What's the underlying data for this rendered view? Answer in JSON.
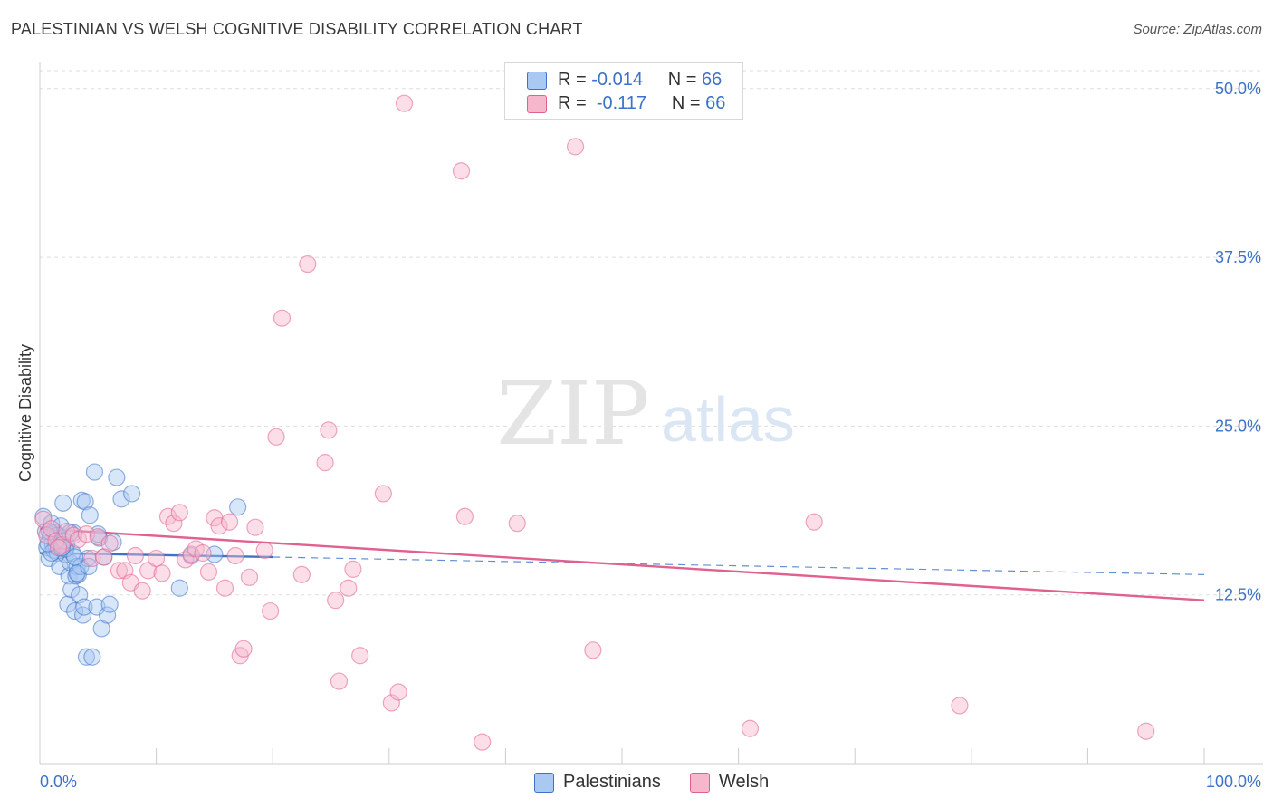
{
  "title": "PALESTINIAN VS WELSH COGNITIVE DISABILITY CORRELATION CHART",
  "source": "Source: ZipAtlas.com",
  "colors": {
    "blue": "#3d72c8",
    "blue_fill": "#a9c8f2",
    "pink": "#e0608e",
    "pink_fill": "#f6b6cb",
    "grid": "#dddddd",
    "axis_label": "#3d72c8"
  },
  "watermark": {
    "zip": "ZIP",
    "atlas": "atlas"
  },
  "legend_top": {
    "rows": [
      {
        "r_label": "R =",
        "r_value": "-0.014",
        "n_label": "N =",
        "n_value": "66",
        "series": "Palestinians"
      },
      {
        "r_label": "R =",
        "r_value": "-0.117",
        "n_label": "N =",
        "n_value": "66",
        "series": "Welsh"
      }
    ]
  },
  "legend_bottom": [
    "Palestinians",
    "Welsh"
  ],
  "chart_data": {
    "type": "scatter",
    "title": "PALESTINIAN VS WELSH COGNITIVE DISABILITY CORRELATION CHART",
    "xlabel": "",
    "ylabel": "Cognitive Disability",
    "xlim": [
      0,
      100
    ],
    "ylim": [
      0,
      52
    ],
    "x_tick_labels": [
      "0.0%",
      "100.0%"
    ],
    "y_ticks": [
      12.5,
      25.0,
      37.5,
      50.0
    ],
    "y_tick_labels": [
      "12.5%",
      "25.0%",
      "37.5%",
      "50.0%"
    ],
    "grid": true,
    "series": [
      {
        "name": "Palestinians",
        "trend": {
          "x0": 0,
          "y0": 15.6,
          "x1": 20,
          "y1": 15.3,
          "dash_x1": 100,
          "dash_y1": 14.0
        },
        "points": [
          [
            0.3,
            18.3
          ],
          [
            0.5,
            17.2
          ],
          [
            0.6,
            16.0
          ],
          [
            0.8,
            15.2
          ],
          [
            0.9,
            16.8
          ],
          [
            1.0,
            17.8
          ],
          [
            1.1,
            16.3
          ],
          [
            1.2,
            15.8
          ],
          [
            1.3,
            17.1
          ],
          [
            1.4,
            16.1
          ],
          [
            1.5,
            15.6
          ],
          [
            1.6,
            16.6
          ],
          [
            1.7,
            14.6
          ],
          [
            1.8,
            17.6
          ],
          [
            1.9,
            15.9
          ],
          [
            2.0,
            19.3
          ],
          [
            2.1,
            16.1
          ],
          [
            2.2,
            15.5
          ],
          [
            2.3,
            16.2
          ],
          [
            2.4,
            11.8
          ],
          [
            2.5,
            13.9
          ],
          [
            2.6,
            14.9
          ],
          [
            2.7,
            12.9
          ],
          [
            2.8,
            15.6
          ],
          [
            2.9,
            17.1
          ],
          [
            3.0,
            11.3
          ],
          [
            3.1,
            13.9
          ],
          [
            3.2,
            14.6
          ],
          [
            3.3,
            14.0
          ],
          [
            3.4,
            12.5
          ],
          [
            3.5,
            14.6
          ],
          [
            3.6,
            19.5
          ],
          [
            3.7,
            11.0
          ],
          [
            3.8,
            11.6
          ],
          [
            3.9,
            19.4
          ],
          [
            4.0,
            7.9
          ],
          [
            4.1,
            15.2
          ],
          [
            4.3,
            18.4
          ],
          [
            4.5,
            7.9
          ],
          [
            4.7,
            21.6
          ],
          [
            4.9,
            11.6
          ],
          [
            5.1,
            16.7
          ],
          [
            5.3,
            10.0
          ],
          [
            5.5,
            15.3
          ],
          [
            5.8,
            11.0
          ],
          [
            6.0,
            11.8
          ],
          [
            6.3,
            16.4
          ],
          [
            6.6,
            21.2
          ],
          [
            7.0,
            19.6
          ],
          [
            7.9,
            20.0
          ],
          [
            12.0,
            13.0
          ],
          [
            13.0,
            15.4
          ],
          [
            15.0,
            15.5
          ],
          [
            17.0,
            19.0
          ],
          [
            2.2,
            15.9
          ],
          [
            1.0,
            15.6
          ],
          [
            0.7,
            16.3
          ],
          [
            1.5,
            16.9
          ],
          [
            2.6,
            17.1
          ],
          [
            3.2,
            14.1
          ],
          [
            4.2,
            14.6
          ],
          [
            5.0,
            17.0
          ],
          [
            1.9,
            16.0
          ],
          [
            0.8,
            17.2
          ],
          [
            2.1,
            16.5
          ],
          [
            3.0,
            15.3
          ]
        ]
      },
      {
        "name": "Welsh",
        "trend": {
          "x0": 0,
          "y0": 17.4,
          "x1": 100,
          "y1": 12.1
        },
        "points": [
          [
            0.3,
            18.1
          ],
          [
            0.6,
            16.9
          ],
          [
            1.0,
            17.4
          ],
          [
            1.4,
            16.5
          ],
          [
            1.9,
            16.2
          ],
          [
            2.3,
            17.2
          ],
          [
            2.9,
            16.9
          ],
          [
            3.3,
            16.6
          ],
          [
            4.0,
            17.0
          ],
          [
            4.5,
            15.2
          ],
          [
            5.0,
            16.8
          ],
          [
            5.5,
            15.3
          ],
          [
            6.0,
            16.3
          ],
          [
            6.8,
            14.3
          ],
          [
            7.3,
            14.3
          ],
          [
            7.8,
            13.4
          ],
          [
            8.2,
            15.4
          ],
          [
            8.8,
            12.8
          ],
          [
            9.3,
            14.3
          ],
          [
            10.0,
            15.2
          ],
          [
            10.5,
            14.1
          ],
          [
            11.0,
            18.3
          ],
          [
            11.5,
            17.8
          ],
          [
            12.0,
            18.6
          ],
          [
            12.5,
            15.1
          ],
          [
            13.0,
            15.5
          ],
          [
            13.4,
            15.9
          ],
          [
            14.0,
            15.6
          ],
          [
            14.5,
            14.2
          ],
          [
            15.0,
            18.2
          ],
          [
            15.4,
            17.6
          ],
          [
            15.9,
            13.0
          ],
          [
            16.3,
            17.9
          ],
          [
            16.8,
            15.4
          ],
          [
            17.2,
            8.0
          ],
          [
            17.5,
            8.5
          ],
          [
            18.0,
            13.8
          ],
          [
            18.5,
            17.5
          ],
          [
            19.3,
            15.8
          ],
          [
            19.8,
            11.3
          ],
          [
            20.3,
            24.2
          ],
          [
            20.8,
            33.0
          ],
          [
            22.5,
            14.0
          ],
          [
            23.0,
            37.0
          ],
          [
            24.5,
            22.3
          ],
          [
            24.8,
            24.7
          ],
          [
            25.4,
            12.1
          ],
          [
            25.7,
            6.1
          ],
          [
            26.5,
            13.0
          ],
          [
            26.9,
            14.4
          ],
          [
            27.5,
            8.0
          ],
          [
            29.5,
            20.0
          ],
          [
            30.2,
            4.5
          ],
          [
            30.8,
            5.3
          ],
          [
            31.3,
            48.9
          ],
          [
            36.2,
            43.9
          ],
          [
            36.5,
            18.3
          ],
          [
            38.0,
            1.6
          ],
          [
            41.0,
            17.8
          ],
          [
            46.0,
            45.7
          ],
          [
            47.5,
            8.4
          ],
          [
            61.0,
            2.6
          ],
          [
            66.5,
            17.9
          ],
          [
            79.0,
            4.3
          ],
          [
            95.0,
            2.4
          ],
          [
            1.6,
            16.0
          ]
        ]
      }
    ]
  }
}
